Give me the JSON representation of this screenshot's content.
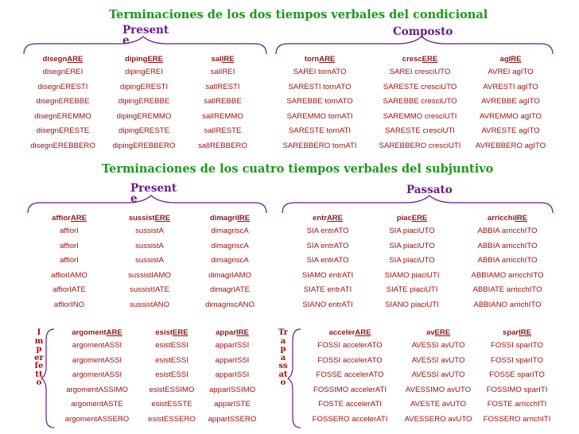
{
  "title1": "Terminaciones de los dos tiempos verbales del condicional",
  "title2": "Terminaciones de los cuatro tiempos verbales del subjuntivo",
  "labels": {
    "cond_present": "Present e",
    "cond_composto": "Composto",
    "subj_present": "Present e",
    "subj_passato": "Passato",
    "imperfetto": "Imperfetto",
    "trapassato": "Trapassato"
  },
  "cond_present": [
    {
      "stem": "disegn",
      "end": "ARE",
      "rows": [
        "disegnEREI",
        "disegnERESTI",
        "disegnEREBBE",
        "disegnEREMMO",
        "disegnERESTE",
        "disegnEREBBERO"
      ]
    },
    {
      "stem": "diping",
      "end": "ERE",
      "rows": [
        "dipingEREI",
        "dipingERESTI",
        "dipingEREBBE",
        "dipingEREMMO",
        "dipingERESTE",
        "dipingEREBBERO"
      ]
    },
    {
      "stem": "sal",
      "end": "IRE",
      "rows": [
        "salIREI",
        "salIRESTI",
        "salIREBBE",
        "salIREMMO",
        "salIRESTE",
        "salIREBBERO"
      ]
    }
  ],
  "cond_composto": [
    {
      "stem": "torn",
      "end": "ARE",
      "rows": [
        "SAREI tornATO",
        "SARESTI tornATO",
        "SAREBBE tornATO",
        "SAREMMO tornATI",
        "SARESTE tornATI",
        "SAREBBERO tornATI"
      ]
    },
    {
      "stem": "cresc",
      "end": "ERE",
      "rows": [
        "SAREI cresciUTO",
        "SARESTE cresciUTO",
        "SAREBBE cresciUTO",
        "SAREMMO cresciUTI",
        "SARESTE cresciUTI",
        "SAREBBERO cresciUTI"
      ]
    },
    {
      "stem": "ag",
      "end": "IRE",
      "rows": [
        "AVREI agITO",
        "AVRESTI agITO",
        "AVREBBE agITO",
        "AVREMMO agITO",
        "AVRESTE agITO",
        "AVREBBERO agITO"
      ]
    }
  ],
  "subj_present": [
    {
      "stem": "affior",
      "end": "ARE",
      "rows": [
        "affiorI",
        "affiorI",
        "affiorI",
        "affiorIAMO",
        "affiorIATE",
        "affiorINO"
      ]
    },
    {
      "stem": "sussist",
      "end": "ERE",
      "rows": [
        "sussistA",
        "sussistA",
        "sussistA",
        "sussistIAMO",
        "sussistIATE",
        "sussistANO"
      ]
    },
    {
      "stem": "dimagri",
      "end": "IRE",
      "rows": [
        "dimagriscA",
        "dimagriscA",
        "dimagriscA",
        "dimagrIAMO",
        "dimagrIATE",
        "dimagriscANO"
      ]
    }
  ],
  "subj_passato": [
    {
      "stem": "entr",
      "end": "ARE",
      "rows": [
        "SIA entrATO",
        "SIA entrATO",
        "SIA entrATO",
        "SIAMO entrATI",
        "SIATE entrATI",
        "SIANO entrATI"
      ]
    },
    {
      "stem": "piac",
      "end": "ERE",
      "rows": [
        "SIA piaciUTO",
        "SIA piaciUTO",
        "SIA piaciUTO",
        "SIAMO piaciUTI",
        "SIATE piaciUTI",
        "SIANO piaciUTI"
      ]
    },
    {
      "stem": "arricchi",
      "end": "IRE",
      "rows": [
        "ABBIA arricchITO",
        "ABBIA arricchITO",
        "ABBIA arricchITO",
        "ABBIAMO arricchITO",
        "ABBIATE arricchITO",
        "ABBIANO arrichITO"
      ]
    }
  ],
  "subj_imperfetto": [
    {
      "stem": "argoment",
      "end": "ARE",
      "rows": [
        "argomentASSI",
        "argomentASSI",
        "argomentASSI",
        "argomentASSIMO",
        "argomentASTE",
        "argomentASSERO"
      ]
    },
    {
      "stem": "esist",
      "end": "ERE",
      "rows": [
        "esistESSI",
        "esistESSI",
        "esistESSI",
        "esistESSIMO",
        "esistESSTE",
        "esistESSERO"
      ]
    },
    {
      "stem": "appar",
      "end": "IRE",
      "rows": [
        "apparISSI",
        "apparISSI",
        "apparISSI",
        "apparISSIMO",
        "apparISTE",
        "apparISSERO"
      ]
    }
  ],
  "subj_trapassato": [
    {
      "stem": "acceler",
      "end": "ARE",
      "rows": [
        "FOSSI accelerATO",
        "FOSSI accelerATO",
        "FOSSE accelerATO",
        "FOSSIMO accelerATI",
        "FOSTE accelerATI",
        "FOSSERO accelerATI"
      ]
    },
    {
      "stem": "av",
      "end": "ERE",
      "rows": [
        "AVESSI avUTO",
        "AVESSI avUTO",
        "AVESSI avUTO",
        "AVESSIMO avUTO",
        "AVESTE avUTO",
        "AVESSERO avUTO"
      ]
    },
    {
      "stem": "spar",
      "end": "IRE",
      "rows": [
        "FOSSI sparITO",
        "FOSSI sparITO",
        "FOSSE sparITO",
        "FOSSIMO sparITI",
        "FOSTE arricchITI",
        "FOSSERO arrichITI"
      ]
    }
  ]
}
